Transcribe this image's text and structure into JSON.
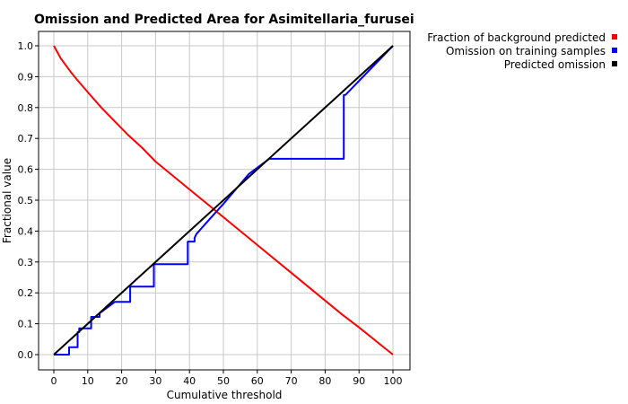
{
  "chart_data": {
    "type": "line",
    "title": "Omission and Predicted Area for Asimitellaria_furusei",
    "xlabel": "Cumulative threshold",
    "ylabel": "Fractional value",
    "xlim": [
      0,
      100
    ],
    "ylim": [
      0,
      1
    ],
    "x_ticks": [
      "0",
      "10",
      "20",
      "30",
      "40",
      "50",
      "60",
      "70",
      "80",
      "90",
      "100"
    ],
    "y_ticks": [
      "0.0",
      "0.1",
      "0.2",
      "0.3",
      "0.4",
      "0.5",
      "0.6",
      "0.7",
      "0.8",
      "0.9",
      "1.0"
    ],
    "grid": true,
    "legend_position": "top-right, outside plot",
    "series": [
      {
        "name": "Fraction of background predicted",
        "color": "#ff0000",
        "x": [
          0,
          1,
          2,
          3,
          5,
          7,
          10,
          14,
          18,
          22,
          26,
          30,
          35,
          40,
          45,
          50,
          55,
          60,
          65,
          70,
          75,
          80,
          85,
          90,
          95,
          100
        ],
        "y": [
          1.0,
          0.98,
          0.96,
          0.945,
          0.915,
          0.888,
          0.85,
          0.8,
          0.755,
          0.71,
          0.67,
          0.625,
          0.58,
          0.535,
          0.49,
          0.445,
          0.4,
          0.355,
          0.31,
          0.265,
          0.22,
          0.175,
          0.13,
          0.088,
          0.044,
          0.0
        ]
      },
      {
        "name": "Omission on training samples",
        "color": "#0000ff",
        "x": [
          0,
          4.5,
          4.5,
          7,
          7,
          7.5,
          7.5,
          11,
          11,
          13.5,
          13.5,
          18,
          18,
          22.5,
          22.5,
          29.5,
          29.5,
          39.5,
          39.5,
          41.5,
          41.5,
          42,
          45,
          50,
          57.5,
          63.5,
          85.5,
          85.5,
          86,
          100
        ],
        "y": [
          0,
          0,
          0.024,
          0.024,
          0.073,
          0.073,
          0.085,
          0.085,
          0.122,
          0.122,
          0.134,
          0.171,
          0.171,
          0.171,
          0.22,
          0.22,
          0.293,
          0.293,
          0.366,
          0.366,
          0.378,
          0.39,
          0.427,
          0.488,
          0.585,
          0.634,
          0.634,
          0.841,
          0.841,
          1.0
        ]
      },
      {
        "name": "Predicted omission",
        "color": "#000000",
        "x": [
          0,
          100
        ],
        "y": [
          0,
          1
        ]
      }
    ]
  }
}
